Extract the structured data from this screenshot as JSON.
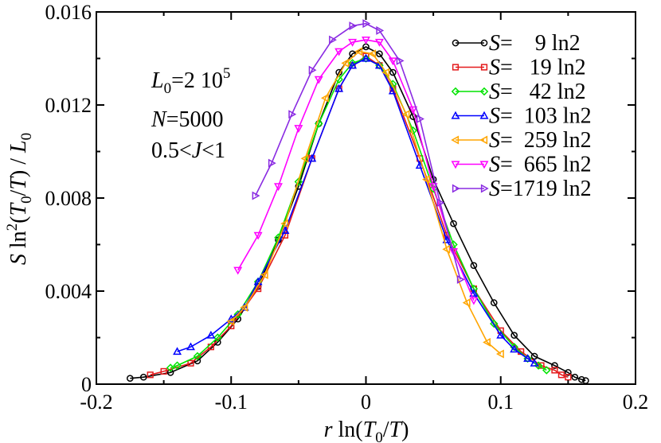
{
  "chart_data": {
    "type": "line",
    "xlabel": "r ln(T0/T)",
    "xlabel_parts": {
      "var": "r",
      "fn": "ln(",
      "t0": "T",
      "sub0": "0",
      "slash": "/",
      "t": "T",
      "close": ")"
    },
    "ylabel_parts": {
      "var": "S",
      "fn": "ln",
      "sup": "2",
      "open": "(",
      "t0": "T",
      "sub0": "0",
      "slash": "/",
      "t": "T",
      "close": ")",
      "slash2": " / ",
      "l0": "L",
      "subl": "0"
    },
    "xlim": [
      -0.2,
      0.2
    ],
    "ylim": [
      0,
      0.016
    ],
    "xticks": [
      -0.2,
      -0.1,
      0,
      0.1,
      0.2
    ],
    "xtick_labels": [
      "-0.2",
      "-0.1",
      "0",
      "0.1",
      "0.2"
    ],
    "yticks": [
      0,
      0.004,
      0.008,
      0.012,
      0.016
    ],
    "ytick_labels": [
      "0",
      "0.004",
      "0.008",
      "0.012",
      "0.016"
    ],
    "annotations": {
      "l0": {
        "var": "L",
        "sub": "0",
        "eq": "=2 10",
        "sup": "5"
      },
      "n": {
        "var": "N",
        "eq": "=5000"
      },
      "j": {
        "pre": "0.5<",
        "var": "J",
        "post": "<1"
      }
    },
    "legend_position": "top-right",
    "series": [
      {
        "name": "S=9 ln2",
        "legend_var": "S",
        "legend_rest": "=    9 ln2",
        "color": "#000000",
        "marker": "circle",
        "x": [
          -0.175,
          -0.165,
          -0.145,
          -0.125,
          -0.11,
          -0.095,
          -0.08,
          -0.065,
          -0.05,
          -0.035,
          -0.02,
          -0.01,
          0,
          0.01,
          0.02,
          0.035,
          0.05,
          0.065,
          0.08,
          0.095,
          0.11,
          0.125,
          0.14,
          0.15,
          0.155,
          0.16,
          0.163
        ],
        "y": [
          0.00025,
          0.0003,
          0.0005,
          0.001,
          0.0018,
          0.0028,
          0.0042,
          0.0062,
          0.0085,
          0.0112,
          0.0134,
          0.0142,
          0.0145,
          0.0142,
          0.0134,
          0.0115,
          0.0088,
          0.0069,
          0.0051,
          0.0035,
          0.0021,
          0.0012,
          0.0008,
          0.0005,
          0.0003,
          0.0002,
          0.00015
        ]
      },
      {
        "name": "S=19 ln2",
        "legend_var": "S",
        "legend_rest": "=   19 ln2",
        "color": "#e41a1c",
        "marker": "square",
        "x": [
          -0.16,
          -0.15,
          -0.13,
          -0.115,
          -0.1,
          -0.08,
          -0.06,
          -0.04,
          -0.02,
          -0.01,
          0,
          0.01,
          0.02,
          0.04,
          0.06,
          0.08,
          0.1,
          0.115,
          0.13,
          0.14,
          0.145,
          0.15
        ],
        "y": [
          0.0004,
          0.00055,
          0.0009,
          0.0016,
          0.0025,
          0.0041,
          0.0064,
          0.0097,
          0.0127,
          0.0137,
          0.0141,
          0.0137,
          0.0127,
          0.0097,
          0.0064,
          0.0041,
          0.0023,
          0.0014,
          0.0008,
          0.0006,
          0.0004,
          0.0003
        ]
      },
      {
        "name": "S=42 ln2",
        "legend_var": "S",
        "legend_rest": "=   42 ln2",
        "color": "#00e400",
        "marker": "diamond",
        "x": [
          -0.145,
          -0.14,
          -0.125,
          -0.11,
          -0.095,
          -0.08,
          -0.065,
          -0.05,
          -0.035,
          -0.02,
          -0.01,
          0,
          0.01,
          0.02,
          0.035,
          0.05,
          0.065,
          0.08,
          0.095,
          0.11,
          0.12,
          0.128,
          0.134
        ],
        "y": [
          0.0007,
          0.0008,
          0.0012,
          0.002,
          0.003,
          0.0044,
          0.0063,
          0.0087,
          0.0112,
          0.0131,
          0.0138,
          0.014,
          0.0137,
          0.0129,
          0.0109,
          0.0084,
          0.006,
          0.0041,
          0.0026,
          0.0016,
          0.0011,
          0.0008,
          0.0006
        ]
      },
      {
        "name": "S=103 ln2",
        "legend_var": "S",
        "legend_rest": "=  103 ln2",
        "color": "#0000ff",
        "marker": "triangle-up",
        "x": [
          -0.14,
          -0.13,
          -0.115,
          -0.1,
          -0.09,
          -0.08,
          -0.06,
          -0.04,
          -0.02,
          -0.01,
          0,
          0.01,
          0.02,
          0.04,
          0.06,
          0.08,
          0.1,
          0.11,
          0.12,
          0.125
        ],
        "y": [
          0.0014,
          0.0016,
          0.0021,
          0.0028,
          0.0033,
          0.0044,
          0.0066,
          0.0097,
          0.0127,
          0.0137,
          0.014,
          0.0137,
          0.0126,
          0.0094,
          0.0062,
          0.0039,
          0.0021,
          0.0015,
          0.0011,
          0.0009
        ]
      },
      {
        "name": "S=259 ln2",
        "legend_var": "S",
        "legend_rest": "=  259 ln2",
        "color": "#ffa500",
        "marker": "triangle-left",
        "x": [
          -0.1,
          -0.09,
          -0.075,
          -0.06,
          -0.045,
          -0.03,
          -0.015,
          -0.005,
          0.005,
          0.015,
          0.03,
          0.045,
          0.06,
          0.075,
          0.09,
          0.1
        ],
        "y": [
          0.0027,
          0.0033,
          0.0047,
          0.0069,
          0.0097,
          0.0123,
          0.0138,
          0.0143,
          0.0142,
          0.0134,
          0.0116,
          0.0088,
          0.0058,
          0.0035,
          0.0018,
          0.0013
        ]
      },
      {
        "name": "S=665 ln2",
        "legend_var": "S",
        "legend_rest": "=  665 ln2",
        "color": "#ff00ff",
        "marker": "triangle-down",
        "x": [
          -0.095,
          -0.08,
          -0.065,
          -0.05,
          -0.035,
          -0.02,
          -0.01,
          0,
          0.01,
          0.02,
          0.035,
          0.05,
          0.065,
          0.08
        ],
        "y": [
          0.0049,
          0.0064,
          0.0085,
          0.011,
          0.0131,
          0.0143,
          0.0147,
          0.0148,
          0.0147,
          0.0139,
          0.0118,
          0.0085,
          0.0057,
          0.0036
        ]
      },
      {
        "name": "S=1719 ln2",
        "legend_var": "S",
        "legend_rest": "=1719 ln2",
        "color": "#8a2be2",
        "marker": "triangle-right",
        "x": [
          -0.082,
          -0.07,
          -0.055,
          -0.04,
          -0.025,
          -0.01,
          0,
          0.01,
          0.025,
          0.04,
          0.055,
          0.07
        ],
        "y": [
          0.0081,
          0.0095,
          0.0116,
          0.0135,
          0.0148,
          0.0154,
          0.0155,
          0.0152,
          0.0139,
          0.0114,
          0.0078,
          0.0045
        ]
      }
    ]
  }
}
